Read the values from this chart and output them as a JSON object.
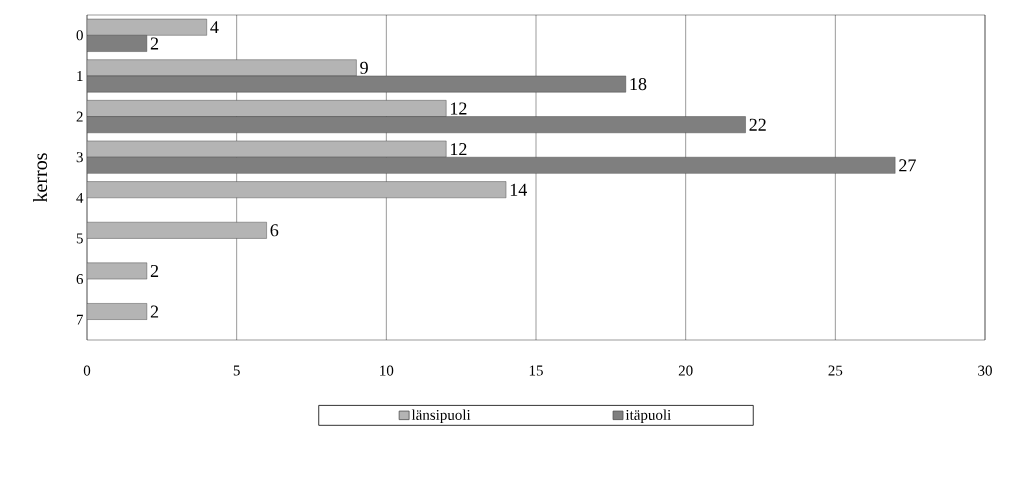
{
  "chart_data": {
    "type": "bar",
    "orientation": "horizontal",
    "ylabel": "kerros",
    "categories": [
      "0",
      "1",
      "2",
      "3",
      "4",
      "5",
      "6",
      "7"
    ],
    "series": [
      {
        "name": "länsipuoli",
        "color": "#b4b4b4",
        "values": [
          4,
          9,
          12,
          12,
          14,
          6,
          2,
          2
        ]
      },
      {
        "name": "itäpuoli",
        "color": "#7f7f7f",
        "values": [
          2,
          18,
          22,
          27,
          null,
          null,
          null,
          null
        ]
      }
    ],
    "xlim": [
      0,
      30
    ],
    "xticks": [
      0,
      5,
      10,
      15,
      20,
      25,
      30
    ],
    "grid": "x",
    "legend": "bottom",
    "data_labels": true
  }
}
